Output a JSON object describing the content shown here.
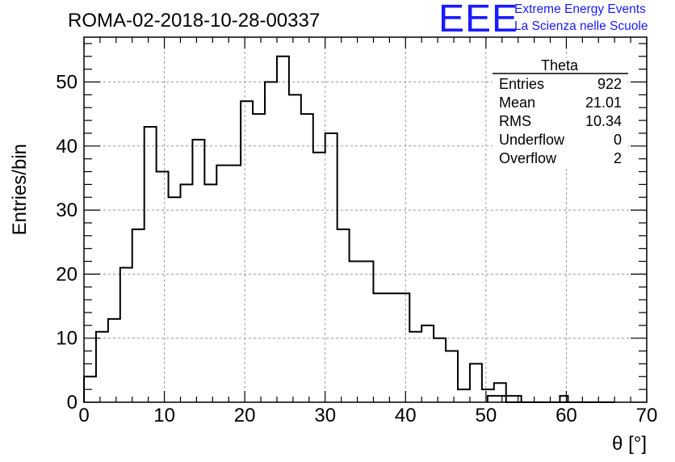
{
  "chart_data": {
    "type": "histogram",
    "title": "ROMA-02-2018-10-28-00337",
    "xlabel": "θ [°]",
    "ylabel": "Entries/bin",
    "xlim": [
      0,
      70
    ],
    "ylim": [
      0,
      57
    ],
    "bin_width": 1.5,
    "bin_start": 0,
    "x_ticks": [
      0,
      10,
      20,
      30,
      40,
      50,
      60,
      70
    ],
    "y_ticks": [
      0,
      10,
      20,
      30,
      40,
      50
    ],
    "grid": true,
    "values": [
      4,
      11,
      13,
      21,
      27,
      43,
      36,
      32,
      34,
      41,
      34,
      37,
      37,
      47,
      45,
      50,
      54,
      48,
      45,
      39,
      42,
      27,
      22,
      22,
      17,
      17,
      17,
      11,
      12,
      10,
      8,
      2,
      6,
      2,
      3,
      0,
      0,
      0,
      0,
      0,
      0,
      0,
      0,
      0
    ],
    "stats": {
      "name": "Theta",
      "rows": [
        {
          "label": "Entries",
          "value": "922"
        },
        {
          "label": "Mean",
          "value": "21.01"
        },
        {
          "label": "RMS",
          "value": "10.34"
        },
        {
          "label": "Underflow",
          "value": "0"
        },
        {
          "label": "Overflow",
          "value": "2"
        }
      ]
    },
    "extra_bins": [
      {
        "x0": 50.2,
        "x1": 54.4,
        "value": 1
      },
      {
        "x0": 59.2,
        "x1": 60.2,
        "value": 1
      }
    ]
  },
  "logo": {
    "mark": "EEE",
    "line1": "Extreme Energy Events",
    "line2": "La Scienza nelle Scuole",
    "color": "#1a1aff"
  }
}
